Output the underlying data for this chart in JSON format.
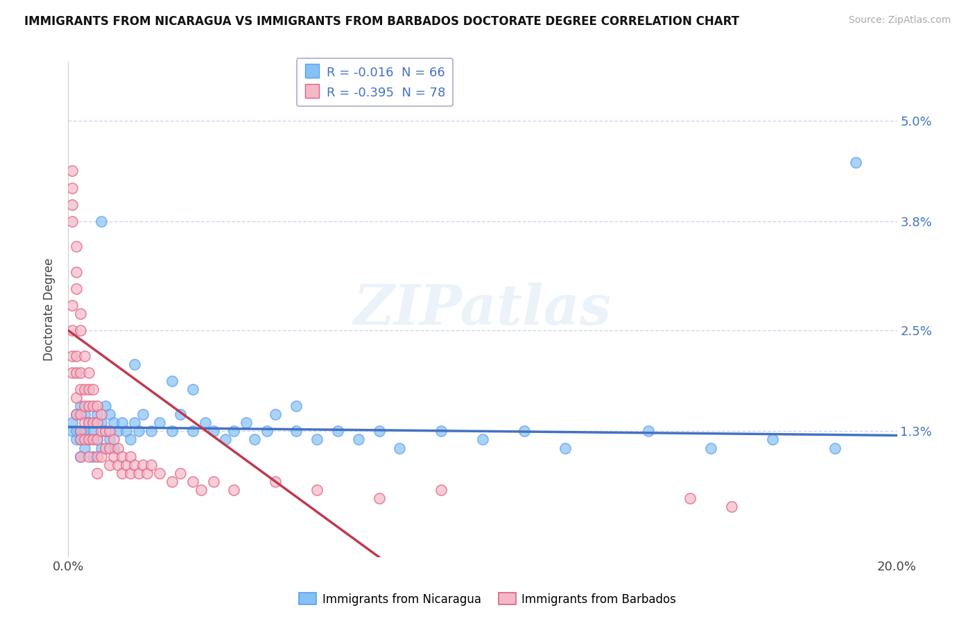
{
  "title": "IMMIGRANTS FROM NICARAGUA VS IMMIGRANTS FROM BARBADOS DOCTORATE DEGREE CORRELATION CHART",
  "source": "Source: ZipAtlas.com",
  "ylabel": "Doctorate Degree",
  "xlim": [
    0.0,
    0.2
  ],
  "ylim": [
    -0.002,
    0.057
  ],
  "xticklabels": [
    "0.0%",
    "20.0%"
  ],
  "ytick_positions": [
    0.013,
    0.025,
    0.038,
    0.05
  ],
  "ytick_labels": [
    "1.3%",
    "2.5%",
    "3.8%",
    "5.0%"
  ],
  "series1_label": "Immigrants from Nicaragua",
  "series1_color": "#85c1f5",
  "series1_edge": "#5a9ff0",
  "series1_R": "-0.016",
  "series1_N": "66",
  "series2_label": "Immigrants from Barbados",
  "series2_color": "#f5b8c8",
  "series2_edge": "#e06080",
  "series2_R": "-0.395",
  "series2_N": "78",
  "watermark": "ZIPatlas",
  "background_color": "#ffffff",
  "grid_color": "#c8d8ee",
  "trend_color1": "#4472c4",
  "trend_color2": "#c0394d",
  "nicaragua_x": [
    0.001,
    0.001,
    0.002,
    0.002,
    0.002,
    0.003,
    0.003,
    0.003,
    0.003,
    0.004,
    0.004,
    0.004,
    0.005,
    0.005,
    0.006,
    0.006,
    0.007,
    0.007,
    0.008,
    0.008,
    0.009,
    0.009,
    0.01,
    0.01,
    0.011,
    0.011,
    0.012,
    0.013,
    0.014,
    0.015,
    0.016,
    0.017,
    0.018,
    0.02,
    0.022,
    0.025,
    0.027,
    0.03,
    0.033,
    0.035,
    0.038,
    0.04,
    0.043,
    0.045,
    0.048,
    0.05,
    0.055,
    0.06,
    0.065,
    0.07,
    0.075,
    0.08,
    0.09,
    0.1,
    0.11,
    0.12,
    0.14,
    0.155,
    0.17,
    0.185,
    0.03,
    0.055,
    0.008,
    0.19,
    0.016,
    0.025
  ],
  "nicaragua_y": [
    0.013,
    0.014,
    0.012,
    0.013,
    0.015,
    0.01,
    0.012,
    0.013,
    0.016,
    0.011,
    0.013,
    0.015,
    0.012,
    0.014,
    0.01,
    0.013,
    0.012,
    0.015,
    0.011,
    0.014,
    0.013,
    0.016,
    0.012,
    0.015,
    0.011,
    0.014,
    0.013,
    0.014,
    0.013,
    0.012,
    0.014,
    0.013,
    0.015,
    0.013,
    0.014,
    0.013,
    0.015,
    0.013,
    0.014,
    0.013,
    0.012,
    0.013,
    0.014,
    0.012,
    0.013,
    0.015,
    0.013,
    0.012,
    0.013,
    0.012,
    0.013,
    0.011,
    0.013,
    0.012,
    0.013,
    0.011,
    0.013,
    0.011,
    0.012,
    0.011,
    0.018,
    0.016,
    0.038,
    0.045,
    0.021,
    0.019
  ],
  "barbados_x": [
    0.001,
    0.001,
    0.001,
    0.001,
    0.001,
    0.001,
    0.001,
    0.001,
    0.002,
    0.002,
    0.002,
    0.002,
    0.002,
    0.002,
    0.002,
    0.003,
    0.003,
    0.003,
    0.003,
    0.003,
    0.003,
    0.003,
    0.003,
    0.004,
    0.004,
    0.004,
    0.004,
    0.004,
    0.005,
    0.005,
    0.005,
    0.005,
    0.005,
    0.005,
    0.006,
    0.006,
    0.006,
    0.006,
    0.007,
    0.007,
    0.007,
    0.007,
    0.007,
    0.008,
    0.008,
    0.008,
    0.009,
    0.009,
    0.01,
    0.01,
    0.01,
    0.011,
    0.011,
    0.012,
    0.012,
    0.013,
    0.013,
    0.014,
    0.015,
    0.015,
    0.016,
    0.017,
    0.018,
    0.019,
    0.02,
    0.022,
    0.025,
    0.027,
    0.03,
    0.032,
    0.035,
    0.04,
    0.05,
    0.06,
    0.075,
    0.09,
    0.15,
    0.16
  ],
  "barbados_y": [
    0.038,
    0.04,
    0.042,
    0.044,
    0.02,
    0.022,
    0.025,
    0.028,
    0.03,
    0.032,
    0.035,
    0.015,
    0.017,
    0.02,
    0.022,
    0.025,
    0.027,
    0.02,
    0.018,
    0.015,
    0.013,
    0.012,
    0.01,
    0.022,
    0.018,
    0.016,
    0.014,
    0.012,
    0.02,
    0.018,
    0.016,
    0.014,
    0.012,
    0.01,
    0.018,
    0.016,
    0.014,
    0.012,
    0.016,
    0.014,
    0.012,
    0.01,
    0.008,
    0.015,
    0.013,
    0.01,
    0.013,
    0.011,
    0.013,
    0.011,
    0.009,
    0.012,
    0.01,
    0.011,
    0.009,
    0.01,
    0.008,
    0.009,
    0.01,
    0.008,
    0.009,
    0.008,
    0.009,
    0.008,
    0.009,
    0.008,
    0.007,
    0.008,
    0.007,
    0.006,
    0.007,
    0.006,
    0.007,
    0.006,
    0.005,
    0.006,
    0.005,
    0.004
  ],
  "nic_trend_x": [
    0.0,
    0.2
  ],
  "nic_trend_y": [
    0.0135,
    0.0125
  ],
  "bar_trend_x": [
    0.0,
    0.075
  ],
  "bar_trend_y": [
    0.025,
    -0.002
  ]
}
